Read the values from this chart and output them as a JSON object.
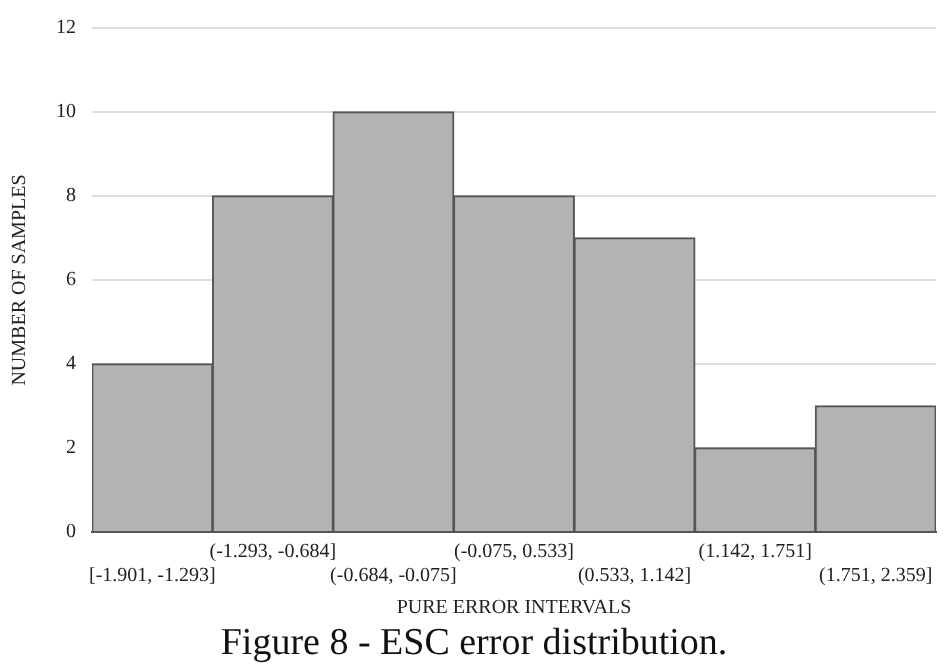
{
  "chart_data": {
    "type": "bar",
    "xlabel": "PURE ERROR INTERVALS",
    "ylabel": "NUMBER OF SAMPLES",
    "categories": [
      "[-1.901, -1.293]",
      "(-1.293, -0.684]",
      "(-0.684, -0.075]",
      "(-0.075, 0.533]",
      "(0.533, 1.142]",
      "(1.142, 1.751]",
      "(1.751, 2.359]"
    ],
    "values": [
      4,
      8,
      10,
      8,
      7,
      2,
      3
    ],
    "color": "#b3b3b3",
    "ylim": [
      0,
      12
    ],
    "yticks": [
      0,
      2,
      4,
      6,
      8,
      10,
      12
    ],
    "grid": "y",
    "annotations": [
      "Figure 8 - ESC error distribution."
    ]
  }
}
